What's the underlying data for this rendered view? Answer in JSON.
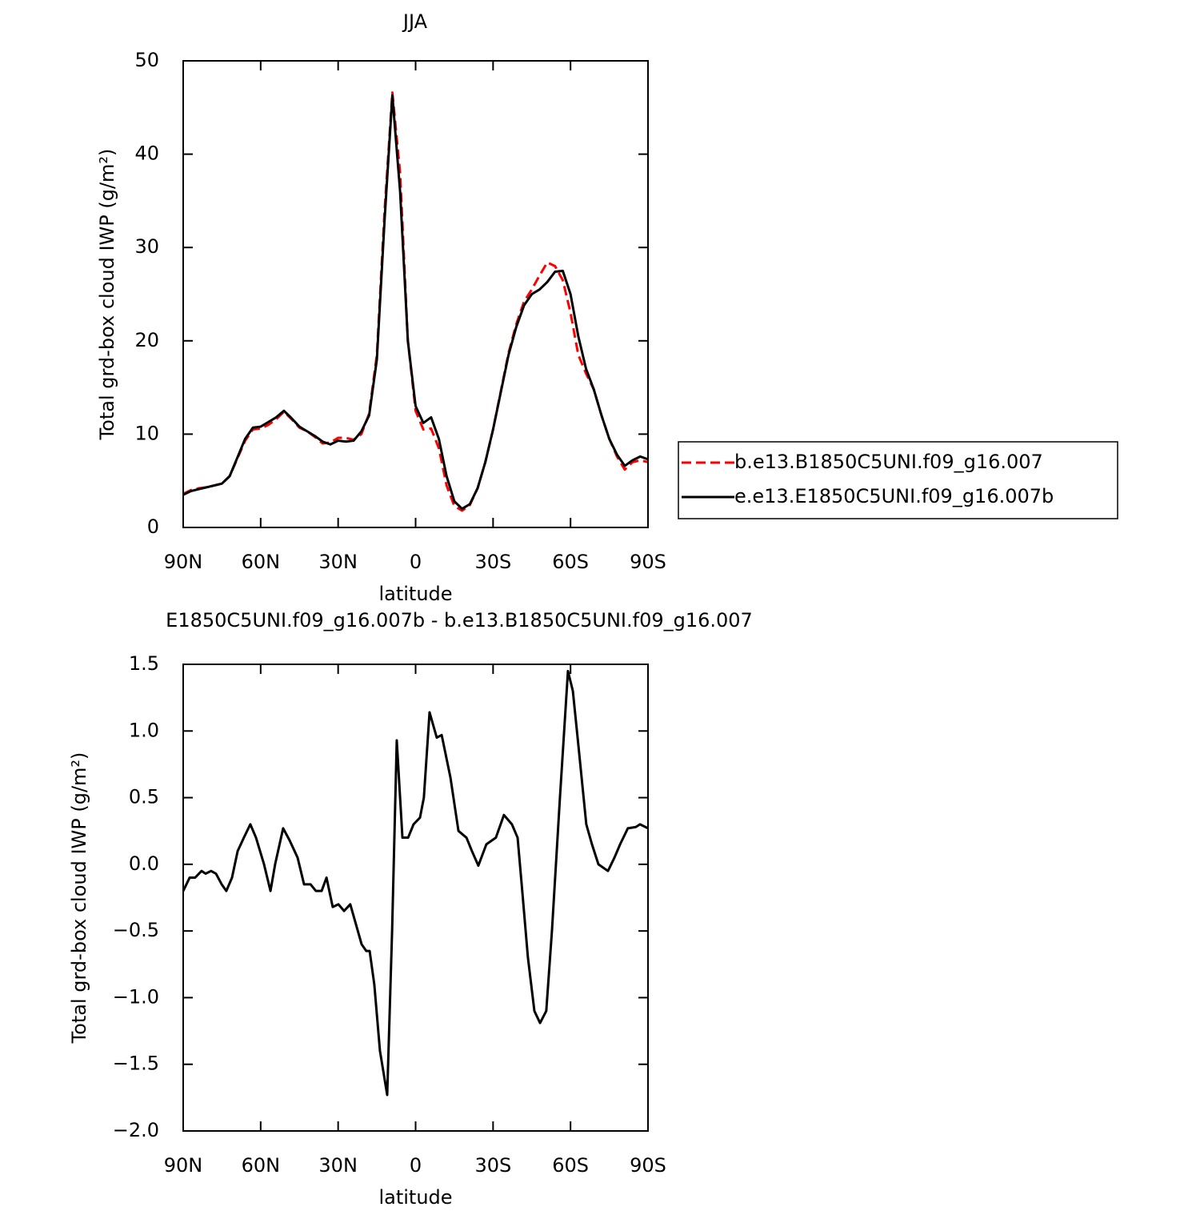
{
  "chart_data": [
    {
      "type": "line",
      "title": "JJA",
      "xlabel": "latitude",
      "ylabel": "Total grd-box cloud IWP (g/m²)",
      "xlim": [
        90,
        -90
      ],
      "xticks": [
        {
          "value": 90,
          "label": "90N"
        },
        {
          "value": 60,
          "label": "60N"
        },
        {
          "value": 30,
          "label": "30N"
        },
        0,
        {
          "value": -30,
          "label": "30S"
        },
        {
          "value": -60,
          "label": "60S"
        },
        {
          "value": -90,
          "label": "90S"
        }
      ],
      "ylim": [
        0,
        50
      ],
      "yticks": [
        0,
        10,
        20,
        30,
        40,
        50
      ],
      "legend": "right",
      "x": [
        90,
        87,
        84,
        81,
        78,
        75,
        72,
        69,
        66,
        63,
        60,
        57,
        54,
        51,
        48,
        45,
        42,
        39,
        36,
        33,
        30,
        27,
        24,
        21,
        18,
        15,
        12,
        9,
        6,
        3,
        0,
        -3,
        -6,
        -9,
        -12,
        -15,
        -18,
        -21,
        -24,
        -27,
        -30,
        -33,
        -36,
        -39,
        -42,
        -45,
        -48,
        -51,
        -54,
        -57,
        -60,
        -63,
        -66,
        -69,
        -72,
        -75,
        -78,
        -81,
        -84,
        -87,
        -90
      ],
      "series": [
        {
          "name": "b.e13.B1850C5UNI.f09_g16.007",
          "color": "#ff0000",
          "line_style": "dashed",
          "values": [
            3.6,
            4.0,
            4.2,
            4.3,
            4.5,
            4.7,
            5.5,
            7.4,
            9.3,
            10.5,
            10.6,
            11.0,
            11.6,
            12.4,
            11.6,
            10.7,
            10.3,
            9.7,
            9.0,
            9.1,
            9.6,
            9.6,
            9.4,
            10.0,
            12.2,
            18.5,
            34,
            46.6,
            38,
            20,
            12.5,
            10.5,
            10.6,
            8.5,
            4.5,
            2.3,
            1.8,
            2.4,
            4.2,
            7,
            10.5,
            14.6,
            18.7,
            21.8,
            24.2,
            25.5,
            27.0,
            28.4,
            28.0,
            26.5,
            23,
            18.5,
            16.5,
            14.8,
            12,
            9.5,
            7.6,
            6.2,
            7.0,
            7.2,
            7.0
          ]
        },
        {
          "name": "e.e13.E1850C5UNI.f09_g16.007b",
          "color": "#000000",
          "line_style": "solid",
          "values": [
            3.5,
            3.9,
            4.1,
            4.3,
            4.5,
            4.7,
            5.5,
            7.5,
            9.5,
            10.7,
            10.8,
            11.3,
            11.8,
            12.5,
            11.7,
            10.8,
            10.3,
            9.8,
            9.2,
            8.9,
            9.3,
            9.2,
            9.3,
            10.3,
            12,
            18,
            33,
            46.3,
            36,
            20,
            13,
            11.2,
            11.8,
            9.5,
            5.5,
            2.8,
            2.0,
            2.5,
            4.2,
            7,
            10.5,
            14.5,
            18.5,
            21.5,
            23.8,
            25,
            25.5,
            26.3,
            27.4,
            27.5,
            25,
            20.5,
            17,
            14.8,
            12,
            9.5,
            7.8,
            6.6,
            7.2,
            7.6,
            7.3
          ]
        }
      ]
    },
    {
      "type": "line",
      "title": "E1850C5UNI.f09_g16.007b - b.e13.B1850C5UNI.f09_g16.007",
      "xlabel": "latitude",
      "ylabel": "Total grd-box cloud IWP (g/m²)",
      "xlim": [
        90,
        -90
      ],
      "xticks": [
        {
          "value": 90,
          "label": "90N"
        },
        {
          "value": 60,
          "label": "60N"
        },
        {
          "value": 30,
          "label": "30N"
        },
        0,
        {
          "value": -30,
          "label": "30S"
        },
        {
          "value": -60,
          "label": "60S"
        },
        {
          "value": -90,
          "label": "90S"
        }
      ],
      "ylim": [
        -2.0,
        1.5
      ],
      "yticks": [
        {
          "value": 1.5,
          "label": "1.5"
        },
        {
          "value": 1.0,
          "label": "1.0"
        },
        {
          "value": 0.5,
          "label": "0.5"
        },
        {
          "value": 0,
          "label": "0.0"
        },
        {
          "value": -0.5,
          "label": "−0.5"
        },
        {
          "value": -1.0,
          "label": "−1.0"
        },
        {
          "value": -1.5,
          "label": "−1.5"
        },
        {
          "value": -2.0,
          "label": "−2.0"
        }
      ],
      "color": "#000000",
      "x": [
        90,
        87.5,
        85.4,
        82.9,
        81.3,
        79.2,
        77.3,
        75.1,
        73.3,
        71.1,
        68.9,
        66.5,
        64,
        61.8,
        58.7,
        56.2,
        54.4,
        51.3,
        48.8,
        45.7,
        43.2,
        40.7,
        38.6,
        36.4,
        34.5,
        32.1,
        29.9,
        27.7,
        25.3,
        23.1,
        20.9,
        19.1,
        17.8,
        16,
        13.8,
        11,
        9.1,
        7.3,
        5.1,
        2.9,
        0.8,
        -1.7,
        -3.2,
        -5.4,
        -8.2,
        -10.1,
        -13.5,
        -16.6,
        -19.7,
        -21.8,
        -24.3,
        -27.4,
        -31.1,
        -34.2,
        -37.3,
        -39.5,
        -41.3,
        -43.5,
        -46,
        -48.2,
        -50.6,
        -52.8,
        -55.9,
        -59,
        -60.9,
        -63,
        -66.1,
        -68.3,
        -70.8,
        -74.5,
        -77,
        -79.2,
        -82.2,
        -85.3,
        -86.9,
        -90
      ],
      "values": [
        -0.2,
        -0.1,
        -0.1,
        -0.05,
        -0.07,
        -0.05,
        -0.07,
        -0.15,
        -0.2,
        -0.1,
        0.1,
        0.2,
        0.3,
        0.2,
        0.0,
        -0.2,
        0.0,
        0.27,
        0.18,
        0.05,
        -0.15,
        -0.15,
        -0.2,
        -0.2,
        -0.1,
        -0.32,
        -0.3,
        -0.35,
        -0.3,
        -0.45,
        -0.6,
        -0.65,
        -0.65,
        -0.9,
        -1.4,
        -1.73,
        -0.5,
        0.93,
        0.2,
        0.2,
        0.3,
        0.35,
        0.5,
        1.14,
        0.95,
        0.97,
        0.65,
        0.25,
        0.2,
        0.1,
        -0.01,
        0.15,
        0.2,
        0.37,
        0.3,
        0.2,
        -0.2,
        -0.7,
        -1.1,
        -1.19,
        -1.1,
        -0.5,
        0.5,
        1.45,
        1.3,
        0.9,
        0.3,
        0.15,
        0.0,
        -0.05,
        0.05,
        0.15,
        0.27,
        0.28,
        0.3,
        0.27
      ]
    }
  ]
}
